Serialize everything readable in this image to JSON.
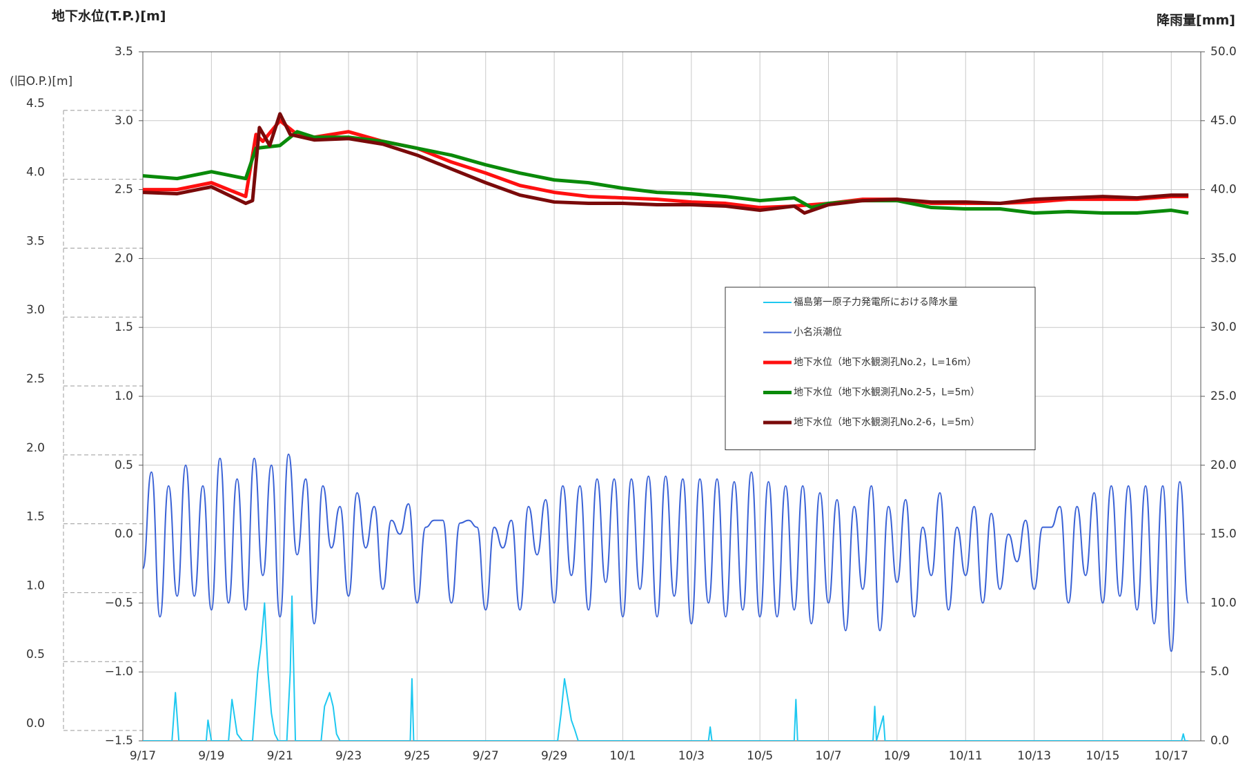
{
  "chart_data": {
    "type": "line",
    "title": "地下水位(T.P.)[m]",
    "y2_title": "降雨量[mm]",
    "y3_title": "(旧O.P.)[m]",
    "xlim": [
      0,
      30.86
    ],
    "xticks": [
      {
        "value": 0,
        "label": "9/17"
      },
      {
        "value": 2,
        "label": "9/19"
      },
      {
        "value": 4,
        "label": "9/21"
      },
      {
        "value": 6,
        "label": "9/23"
      },
      {
        "value": 8,
        "label": "9/25"
      },
      {
        "value": 10,
        "label": "9/27"
      },
      {
        "value": 12,
        "label": "9/29"
      },
      {
        "value": 14,
        "label": "10/1"
      },
      {
        "value": 16,
        "label": "10/3"
      },
      {
        "value": 18,
        "label": "10/5"
      },
      {
        "value": 20,
        "label": "10/7"
      },
      {
        "value": 22,
        "label": "10/9"
      },
      {
        "value": 24,
        "label": "10/11"
      },
      {
        "value": 26,
        "label": "10/13"
      },
      {
        "value": 28,
        "label": "10/15"
      },
      {
        "value": 30,
        "label": "10/17"
      }
    ],
    "ylim": [
      -1.5,
      3.5
    ],
    "yticks": [
      {
        "value": -1.5,
        "label": "−1.5"
      },
      {
        "value": -1,
        "label": "−1.0"
      },
      {
        "value": -0.5,
        "label": "−0.5"
      },
      {
        "value": 0,
        "label": "0.0"
      },
      {
        "value": 0.5,
        "label": "0.5"
      },
      {
        "value": 1,
        "label": "1.0"
      },
      {
        "value": 1.5,
        "label": "1.5"
      },
      {
        "value": 2,
        "label": "2.0"
      },
      {
        "value": 2.5,
        "label": "2.5"
      },
      {
        "value": 3,
        "label": "3.0"
      },
      {
        "value": 3.5,
        "label": "3.5"
      }
    ],
    "y2lim": [
      0,
      50
    ],
    "y2ticks": [
      {
        "value": 0,
        "label": "0.0"
      },
      {
        "value": 5,
        "label": "5.0"
      },
      {
        "value": 10,
        "label": "10.0"
      },
      {
        "value": 15,
        "label": "15.0"
      },
      {
        "value": 20,
        "label": "20.0"
      },
      {
        "value": 25,
        "label": "25.0"
      },
      {
        "value": 30,
        "label": "30.0"
      },
      {
        "value": 35,
        "label": "35.0"
      },
      {
        "value": 40,
        "label": "40.0"
      },
      {
        "value": 45,
        "label": "45.0"
      },
      {
        "value": 50,
        "label": "50.0"
      }
    ],
    "y3lim": [
      -0.075,
      4.925
    ],
    "y3ticks": [
      {
        "value": 0,
        "label": "0.0"
      },
      {
        "value": 0.5,
        "label": "0.5"
      },
      {
        "value": 1,
        "label": "1.0"
      },
      {
        "value": 1.5,
        "label": "1.5"
      },
      {
        "value": 2,
        "label": "2.0"
      },
      {
        "value": 2.5,
        "label": "2.5"
      },
      {
        "value": 3,
        "label": "3.0"
      },
      {
        "value": 3.5,
        "label": "3.5"
      },
      {
        "value": 4,
        "label": "4.0"
      },
      {
        "value": 4.5,
        "label": "4.5"
      }
    ],
    "grid": true,
    "legend": "center-right",
    "series": [
      {
        "name": "福島第一原子力発電所における降水量",
        "color": "#1ec8f0",
        "axis": "y2",
        "width": 2,
        "x": [
          0,
          0.85,
          0.95,
          1.05,
          1.85,
          1.9,
          2.0,
          2.5,
          2.6,
          2.75,
          2.9,
          3.2,
          3.35,
          3.45,
          3.55,
          3.65,
          3.75,
          3.85,
          3.95,
          4.2,
          4.3,
          4.35,
          4.45,
          5.2,
          5.3,
          5.45,
          5.55,
          5.65,
          5.75,
          7.8,
          7.85,
          7.9,
          12.1,
          12.2,
          12.3,
          12.4,
          12.5,
          12.6,
          12.7,
          16.5,
          16.55,
          16.6,
          19.0,
          19.05,
          19.1,
          21.3,
          21.35,
          21.4,
          21.6,
          21.65,
          30.3,
          30.35,
          30.4,
          30.5
        ],
        "values": [
          0,
          0,
          3.5,
          0,
          0,
          1.5,
          0,
          0,
          3,
          0.5,
          0,
          0,
          5,
          7,
          10,
          5,
          2,
          0.5,
          0,
          0,
          5,
          10.5,
          0,
          0,
          2.5,
          3.5,
          2.5,
          0.5,
          0,
          0,
          4.5,
          0,
          0,
          2,
          4.5,
          3,
          1.5,
          0.8,
          0,
          0,
          1,
          0,
          0,
          3,
          0,
          0,
          2.5,
          0,
          1.8,
          0,
          0,
          0.5,
          0,
          0
        ]
      },
      {
        "name": "小名浜潮位",
        "color": "#3a62d6",
        "axis": "y",
        "width": 2,
        "smooth": true,
        "x": [
          0,
          0.25,
          0.5,
          0.75,
          1,
          1.25,
          1.5,
          1.75,
          2,
          2.25,
          2.5,
          2.75,
          3,
          3.25,
          3.5,
          3.75,
          4,
          4.25,
          4.5,
          4.75,
          5,
          5.25,
          5.5,
          5.75,
          6,
          6.25,
          6.5,
          6.75,
          7,
          7.25,
          7.5,
          7.75,
          8,
          8.25,
          8.5,
          8.75,
          9,
          9.25,
          9.5,
          9.75,
          10,
          10.25,
          10.5,
          10.75,
          11,
          11.25,
          11.5,
          11.75,
          12,
          12.25,
          12.5,
          12.75,
          13,
          13.25,
          13.5,
          13.75,
          14,
          14.25,
          14.5,
          14.75,
          15,
          15.25,
          15.5,
          15.75,
          16,
          16.25,
          16.5,
          16.75,
          17,
          17.25,
          17.5,
          17.75,
          18,
          18.25,
          18.5,
          18.75,
          19,
          19.25,
          19.5,
          19.75,
          20,
          20.25,
          20.5,
          20.75,
          21,
          21.25,
          21.5,
          21.75,
          22,
          22.25,
          22.5,
          22.75,
          23,
          23.25,
          23.5,
          23.75,
          24,
          24.25,
          24.5,
          24.75,
          25,
          25.25,
          25.5,
          25.75,
          26,
          26.25,
          26.5,
          26.75,
          27,
          27.25,
          27.5,
          27.75,
          28,
          28.25,
          28.5,
          28.75,
          29,
          29.25,
          29.5,
          29.75,
          30,
          30.25,
          30.5
        ],
        "values": [
          -0.25,
          0.45,
          -0.6,
          0.35,
          -0.45,
          0.5,
          -0.45,
          0.35,
          -0.55,
          0.55,
          -0.5,
          0.4,
          -0.55,
          0.55,
          -0.3,
          0.5,
          -0.6,
          0.58,
          -0.15,
          0.4,
          -0.65,
          0.35,
          -0.1,
          0.2,
          -0.45,
          0.3,
          -0.1,
          0.2,
          -0.4,
          0.1,
          0.0,
          0.22,
          -0.5,
          0.05,
          0.1,
          0.1,
          -0.5,
          0.08,
          0.1,
          0.05,
          -0.55,
          0.05,
          -0.1,
          0.1,
          -0.55,
          0.2,
          -0.15,
          0.25,
          -0.5,
          0.35,
          -0.3,
          0.35,
          -0.55,
          0.4,
          -0.35,
          0.4,
          -0.6,
          0.4,
          -0.4,
          0.42,
          -0.6,
          0.42,
          -0.45,
          0.4,
          -0.65,
          0.4,
          -0.5,
          0.4,
          -0.6,
          0.38,
          -0.55,
          0.45,
          -0.6,
          0.38,
          -0.6,
          0.35,
          -0.55,
          0.35,
          -0.65,
          0.3,
          -0.5,
          0.25,
          -0.7,
          0.2,
          -0.4,
          0.35,
          -0.7,
          0.2,
          -0.35,
          0.25,
          -0.6,
          0.05,
          -0.3,
          0.3,
          -0.55,
          0.05,
          -0.3,
          0.2,
          -0.5,
          0.15,
          -0.4,
          0.0,
          -0.2,
          0.1,
          -0.4,
          0.05,
          0.05,
          0.2,
          -0.5,
          0.2,
          -0.3,
          0.3,
          -0.5,
          0.35,
          -0.45,
          0.35,
          -0.55,
          0.35,
          -0.65,
          0.35,
          -0.85,
          0.38,
          -0.5
        ]
      },
      {
        "name": "地下水位（地下水観測孔No.2，L=16m）",
        "color": "#ff1010",
        "axis": "y",
        "width": 5,
        "x": [
          0,
          1,
          2,
          3,
          3.3,
          3.5,
          4,
          4.5,
          5,
          6,
          7,
          8,
          9,
          10,
          11,
          12,
          13,
          14,
          15,
          16,
          17,
          18,
          19,
          20,
          21,
          22,
          23,
          24,
          25,
          26,
          27,
          28,
          29,
          30,
          30.5
        ],
        "values": [
          2.5,
          2.5,
          2.55,
          2.45,
          2.9,
          2.85,
          3.0,
          2.9,
          2.88,
          2.92,
          2.85,
          2.8,
          2.7,
          2.62,
          2.53,
          2.48,
          2.45,
          2.44,
          2.43,
          2.41,
          2.4,
          2.37,
          2.38,
          2.4,
          2.43,
          2.43,
          2.4,
          2.4,
          2.4,
          2.41,
          2.43,
          2.43,
          2.43,
          2.45,
          2.45
        ]
      },
      {
        "name": "地下水位（地下水観測孔No.2-5，L=5m）",
        "color": "#0a8a0a",
        "axis": "y",
        "width": 5,
        "x": [
          0,
          1,
          2,
          3,
          3.3,
          4,
          4.5,
          5,
          6,
          7,
          8,
          9,
          10,
          11,
          12,
          13,
          14,
          15,
          16,
          17,
          18,
          19,
          19.5,
          20,
          21,
          22,
          23,
          24,
          25,
          26,
          27,
          28,
          29,
          30,
          30.5
        ],
        "values": [
          2.6,
          2.58,
          2.63,
          2.58,
          2.8,
          2.82,
          2.92,
          2.88,
          2.88,
          2.85,
          2.8,
          2.75,
          2.68,
          2.62,
          2.57,
          2.55,
          2.51,
          2.48,
          2.47,
          2.45,
          2.42,
          2.44,
          2.37,
          2.4,
          2.42,
          2.42,
          2.37,
          2.36,
          2.36,
          2.33,
          2.34,
          2.33,
          2.33,
          2.35,
          2.33
        ]
      },
      {
        "name": "地下水位（地下水観測孔No.2-6，L=5m）",
        "color": "#7a0a0a",
        "axis": "y",
        "width": 5,
        "x": [
          0,
          1,
          2,
          3,
          3.2,
          3.4,
          3.7,
          4,
          4.3,
          5,
          6,
          7,
          8,
          9,
          10,
          11,
          12,
          13,
          14,
          15,
          16,
          17,
          18,
          19,
          19.3,
          20,
          21,
          22,
          23,
          24,
          25,
          26,
          27,
          28,
          29,
          30,
          30.5
        ],
        "values": [
          2.48,
          2.47,
          2.52,
          2.4,
          2.42,
          2.95,
          2.82,
          3.05,
          2.9,
          2.86,
          2.87,
          2.83,
          2.75,
          2.65,
          2.55,
          2.46,
          2.41,
          2.4,
          2.4,
          2.39,
          2.39,
          2.38,
          2.35,
          2.38,
          2.33,
          2.39,
          2.42,
          2.43,
          2.41,
          2.41,
          2.4,
          2.43,
          2.44,
          2.45,
          2.44,
          2.46,
          2.46
        ]
      }
    ]
  }
}
